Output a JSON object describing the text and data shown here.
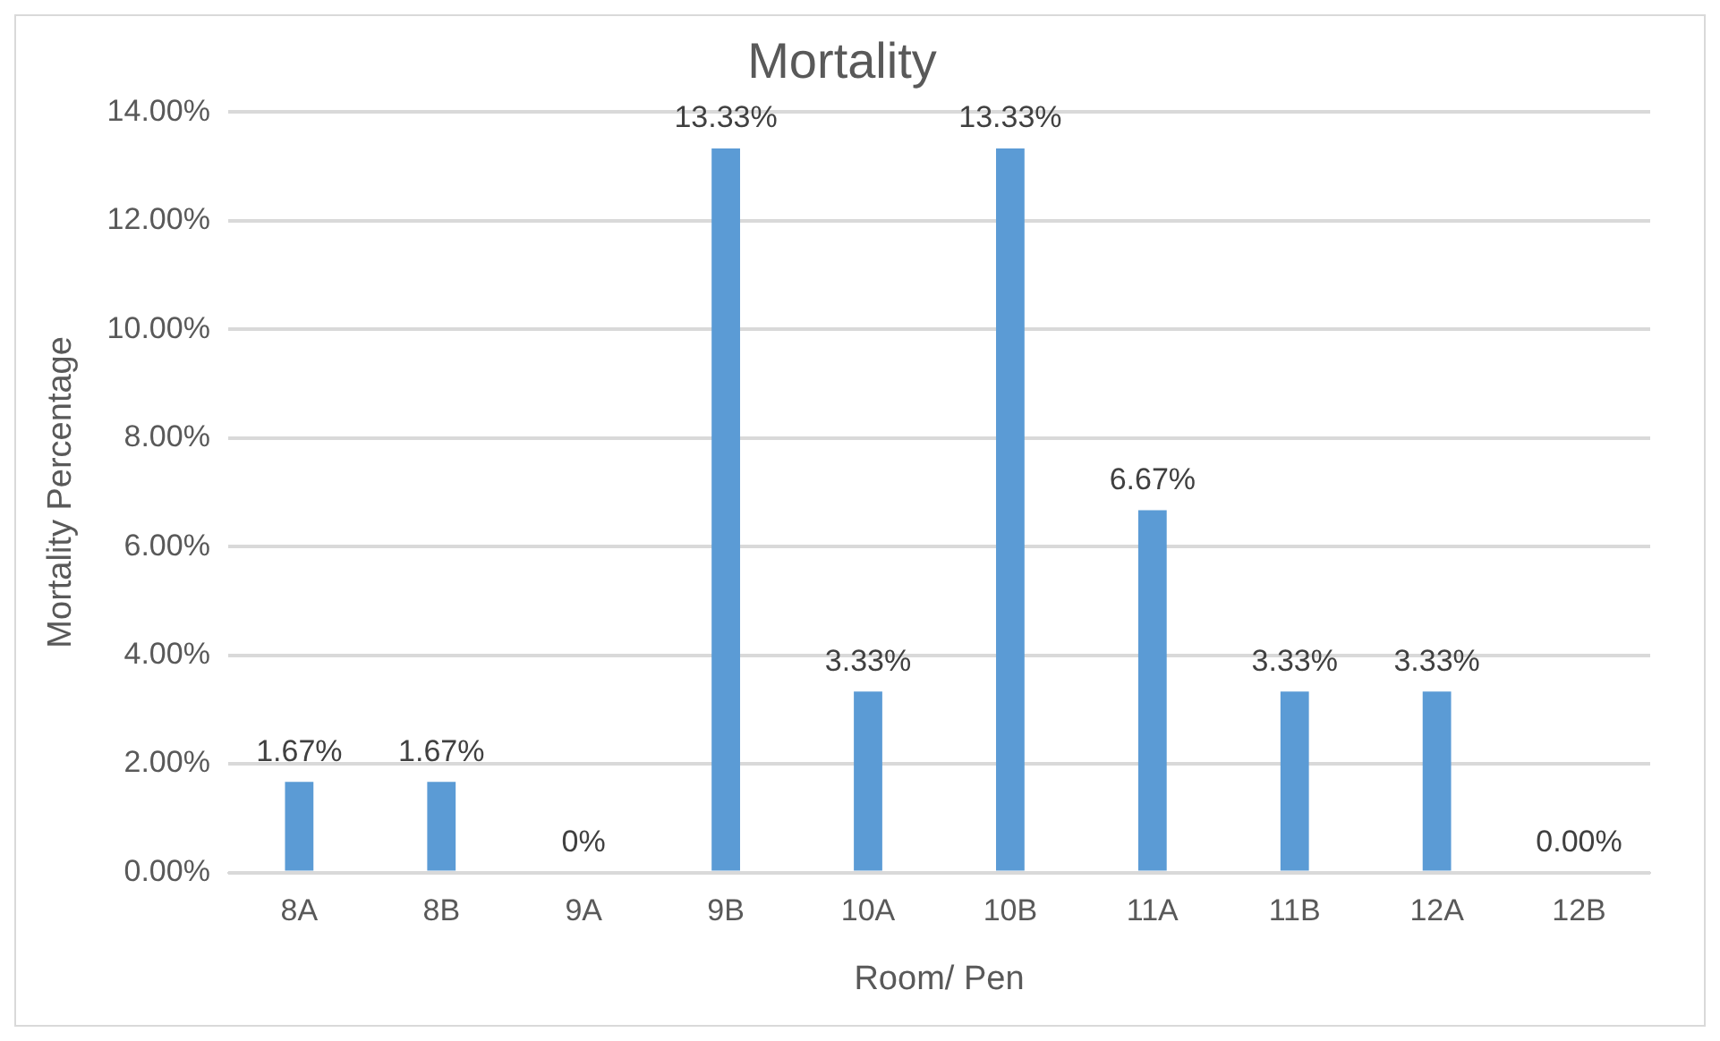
{
  "chart_data": {
    "type": "bar",
    "title": "Mortality",
    "xlabel": "Room/ Pen",
    "ylabel": "Mortality Percentage",
    "categories": [
      "8A",
      "8B",
      "9A",
      "9B",
      "10A",
      "10B",
      "11A",
      "11B",
      "12A",
      "12B"
    ],
    "values": [
      1.67,
      1.67,
      0,
      13.33,
      3.33,
      13.33,
      6.67,
      3.33,
      3.33,
      0
    ],
    "value_labels": [
      "1.67%",
      "1.67%",
      "0%",
      "13.33%",
      "3.33%",
      "13.33%",
      "6.67%",
      "3.33%",
      "3.33%",
      "0.00%"
    ],
    "color": "#5b9bd5",
    "ylim": [
      0,
      14
    ],
    "yticks": [
      {
        "value": 0,
        "label": "0.00%"
      },
      {
        "value": 2,
        "label": "2.00%"
      },
      {
        "value": 4,
        "label": "4.00%"
      },
      {
        "value": 6,
        "label": "6.00%"
      },
      {
        "value": 8,
        "label": "8.00%"
      },
      {
        "value": 10,
        "label": "10.00%"
      },
      {
        "value": 12,
        "label": "12.00%"
      },
      {
        "value": 14,
        "label": "14.00%"
      }
    ],
    "grid": "y"
  }
}
